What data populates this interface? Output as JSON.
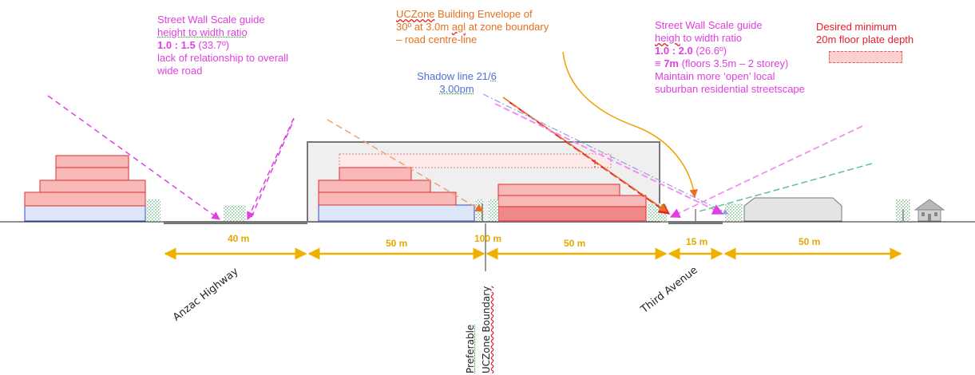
{
  "annotations": {
    "left_guide": {
      "line1": "Street Wall Scale guide",
      "line2": "height to width ratio",
      "ratio": "1.0 : 1.5",
      "angle": " (33.7º)",
      "line4": "lack of relationship to overall",
      "line5": "wide road"
    },
    "envelope": {
      "line1_prefix": "UCZone",
      "line1_rest": " Building Envelope of",
      "line2_a": "30º at 3.0m ",
      "line2_agl": "agl",
      "line2_b": " at zone boundary",
      "line3": "– road centre-line"
    },
    "shadow": {
      "line1_a": "Shadow line 21/",
      "line1_b": "6",
      "line2": "3.00pm"
    },
    "right_guide": {
      "line1": "Street Wall Scale guide",
      "line2_a": "heigh",
      "line2_b": " to width ratio",
      "ratio": "1.0 : 2.0",
      "angle": " (26.6º)",
      "line4_a": "≡ ",
      "line4_b": "7m",
      "line4_c": " (floors 3.5m – 2 storey)",
      "line5": "Maintain more ‘open’ local",
      "line6": "suburban residential streetscape"
    },
    "floorplate": {
      "line1": "Desired minimum",
      "line2": "20m floor plate depth"
    }
  },
  "dimensions": [
    "40 m",
    "50 m",
    "100 m",
    "50 m",
    "15 m",
    "50 m"
  ],
  "streets": {
    "anzac": "Anzac Highway",
    "third": "Third Avenue"
  },
  "boundary": {
    "line1": "Preferable",
    "line2": "UCZone Boundary"
  },
  "colors": {
    "building_fill": "#f8b8b8",
    "building_stroke": "#d83030",
    "base_fill": "#dce6f8",
    "base_stroke": "#3050c0",
    "dimension": "#f0b000",
    "magenta": "#e040e0",
    "orange": "#e8701e",
    "red": "#e8202a",
    "blue": "#4f6fd8",
    "green_dash": "#60c090"
  },
  "icons": [
    "tree-icon",
    "house-icon",
    "arrow-icon"
  ]
}
